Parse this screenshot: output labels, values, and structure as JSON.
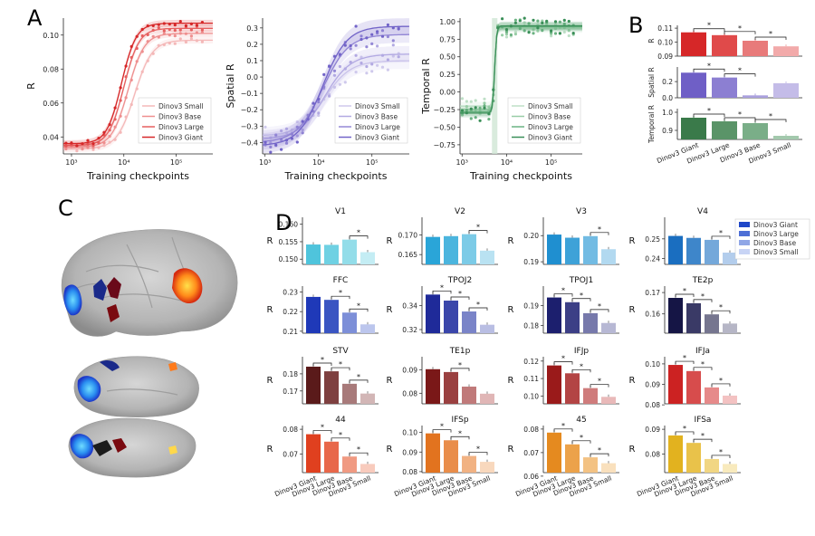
{
  "panel_labels": [
    "A",
    "B",
    "C",
    "D"
  ],
  "model_names": [
    "Dinov3 Small",
    "Dinov3 Base",
    "Dinov3 Large",
    "Dinov3 Giant"
  ],
  "model_names_bar": [
    "Dinov3 Giant",
    "Dinov3 Large",
    "Dinov3 Base",
    "Dinov3 Small"
  ],
  "colors": {
    "red": [
      "#f4b8b8",
      "#ee8f8f",
      "#e65f5f",
      "#d62728"
    ],
    "purple": [
      "#cfc9ec",
      "#b2a9e2",
      "#9488d6",
      "#7264c8"
    ],
    "green": [
      "#bfe0c7",
      "#98cda6",
      "#6bb282",
      "#3a8f58"
    ],
    "legend_blue": [
      "#1f47c8",
      "#4d6fd6",
      "#8fa6e6",
      "#c8d4f5"
    ]
  },
  "chart_data": [
    {
      "id": "A1",
      "type": "line",
      "title": "",
      "xlabel": "Training checkpoints",
      "ylabel": "R",
      "xscale": "log",
      "xlim": [
        700,
        500000
      ],
      "ylim": [
        0.03,
        0.11
      ],
      "xticks": [
        {
          "v": 1000,
          "label": "10³"
        },
        {
          "v": 10000,
          "label": "10⁴"
        },
        {
          "v": 100000,
          "label": "10⁵"
        }
      ],
      "yticks": [
        0.04,
        0.06,
        0.08,
        0.1
      ],
      "ytick_labels": [
        "0.04",
        "0.06",
        "0.08",
        "0.10"
      ],
      "legend": "bottom-right",
      "palette": "red",
      "series": [
        {
          "name": "Dinov3 Small",
          "low": 0.033,
          "high": 0.097,
          "mid": 16000,
          "slope": 2.6
        },
        {
          "name": "Dinov3 Base",
          "low": 0.034,
          "high": 0.101,
          "mid": 12000,
          "slope": 2.8
        },
        {
          "name": "Dinov3 Large",
          "low": 0.035,
          "high": 0.104,
          "mid": 10000,
          "slope": 3.0
        },
        {
          "name": "Dinov3 Giant",
          "low": 0.036,
          "high": 0.107,
          "mid": 9000,
          "slope": 3.1
        }
      ]
    },
    {
      "id": "A2",
      "type": "line",
      "title": "",
      "xlabel": "Training checkpoints",
      "ylabel": "Spatial R",
      "xscale": "log",
      "xlim": [
        900,
        500000
      ],
      "ylim": [
        -0.47,
        0.36
      ],
      "xticks": [
        {
          "v": 1000,
          "label": "10³"
        },
        {
          "v": 10000,
          "label": "10⁴"
        },
        {
          "v": 100000,
          "label": "10⁵"
        }
      ],
      "yticks": [
        -0.4,
        -0.3,
        -0.2,
        -0.1,
        0.0,
        0.1,
        0.2,
        0.3
      ],
      "ytick_labels": [
        "−0.4",
        "−0.3",
        "−0.2",
        "−0.1",
        "0.0",
        "0.1",
        "0.2",
        "0.3"
      ],
      "legend": "bottom-right",
      "palette": "purple",
      "series": [
        {
          "name": "Dinov3 Small",
          "low": -0.36,
          "high": 0.1,
          "mid": 13000,
          "slope": 1.8
        },
        {
          "name": "Dinov3 Base",
          "low": -0.38,
          "high": 0.14,
          "mid": 13000,
          "slope": 1.8
        },
        {
          "name": "Dinov3 Large",
          "low": -0.4,
          "high": 0.26,
          "mid": 12000,
          "slope": 1.8
        },
        {
          "name": "Dinov3 Giant",
          "low": -0.42,
          "high": 0.31,
          "mid": 12000,
          "slope": 1.9
        }
      ]
    },
    {
      "id": "A3",
      "type": "line",
      "title": "",
      "xlabel": "Training checkpoints",
      "ylabel": "Temporal R",
      "xscale": "log",
      "xlim": [
        900,
        500000
      ],
      "ylim": [
        -0.88,
        1.05
      ],
      "xticks": [
        {
          "v": 1000,
          "label": "10³"
        },
        {
          "v": 10000,
          "label": "10⁴"
        },
        {
          "v": 100000,
          "label": "10⁵"
        }
      ],
      "yticks": [
        -0.75,
        -0.5,
        -0.25,
        0.0,
        0.25,
        0.5,
        0.75,
        1.0
      ],
      "ytick_labels": [
        "−0.75",
        "−0.50",
        "−0.25",
        "0.00",
        "0.25",
        "0.50",
        "0.75",
        "1.00"
      ],
      "legend": "bottom-right",
      "palette": "green",
      "series": [
        {
          "name": "Dinov3 Small",
          "low": -0.2,
          "high": 0.9,
          "mid": 5400,
          "slope": 20
        },
        {
          "name": "Dinov3 Base",
          "low": -0.25,
          "high": 0.92,
          "mid": 5400,
          "slope": 20
        },
        {
          "name": "Dinov3 Large",
          "low": -0.28,
          "high": 0.93,
          "mid": 5400,
          "slope": 20
        },
        {
          "name": "Dinov3 Giant",
          "low": -0.3,
          "high": 0.94,
          "mid": 5400,
          "slope": 20
        }
      ]
    },
    {
      "id": "B",
      "type": "bar",
      "categories": [
        "Dinov3 Giant",
        "Dinov3 Large",
        "Dinov3 Base",
        "Dinov3 Small"
      ],
      "subplots": [
        {
          "ylabel": "R",
          "values": [
            0.107,
            0.105,
            0.101,
            0.097
          ],
          "ylim": [
            0.09,
            0.112
          ],
          "yticks": [
            0.09,
            0.1,
            0.11
          ],
          "ytick_labels": [
            "0.09",
            "0.10",
            "0.11"
          ],
          "colors": [
            "#d62728",
            "#e04a4a",
            "#e87a7a",
            "#f2aaaa"
          ],
          "sig": [
            [
              0,
              1
            ],
            [
              1,
              2
            ],
            [
              2,
              3
            ]
          ]
        },
        {
          "ylabel": "Spatial R",
          "values": [
            0.31,
            0.25,
            0.03,
            0.18
          ],
          "ylim": [
            0.0,
            0.38
          ],
          "yticks": [
            0.0,
            0.2
          ],
          "ytick_labels": [
            "0.0",
            "0.2"
          ],
          "colors": [
            "#6f5fc6",
            "#8c7fd2",
            "#aaa0de",
            "#c4bce8"
          ],
          "sig": [
            [
              0,
              1
            ],
            [
              1,
              2
            ]
          ]
        },
        {
          "ylabel": "Temporal R",
          "values": [
            0.97,
            0.95,
            0.94,
            0.87
          ],
          "ylim": [
            0.85,
            1.02
          ],
          "yticks": [
            0.9,
            1.0
          ],
          "ytick_labels": [
            "0.9",
            "1.0"
          ],
          "colors": [
            "#3a7a4a",
            "#5a9468",
            "#7aae88",
            "#a3c9ad"
          ],
          "sig": [
            [
              0,
              1
            ],
            [
              1,
              2
            ],
            [
              2,
              3
            ]
          ]
        }
      ]
    },
    {
      "id": "D",
      "type": "bar",
      "categories": [
        "Dinov3 Giant",
        "Dinov3 Large",
        "Dinov3 Base",
        "Dinov3 Small"
      ],
      "legend": "right",
      "subplots": [
        {
          "title": "V1",
          "values": [
            0.1542,
            0.1541,
            0.1556,
            0.152
          ],
          "ylim": [
            0.1485,
            0.162
          ],
          "yticks": [
            0.15,
            0.155,
            0.16
          ],
          "ytick_labels": [
            "0.150",
            "0.155",
            "0.160"
          ],
          "colors": [
            "#4fc4dc",
            "#6fd1e3",
            "#93dde9",
            "#c4edf4"
          ],
          "sig": [
            [
              2,
              3
            ]
          ]
        },
        {
          "title": "V2",
          "values": [
            0.1695,
            0.1697,
            0.1702,
            0.166
          ],
          "ylim": [
            0.1625,
            0.1745
          ],
          "yticks": [
            0.165,
            0.17
          ],
          "ytick_labels": [
            "0.165",
            "0.170"
          ],
          "colors": [
            "#2aa5d8",
            "#4bb5de",
            "#7ccbe7",
            "#b9e2f2"
          ],
          "sig": [
            [
              2,
              3
            ]
          ]
        },
        {
          "title": "V3",
          "values": [
            0.2004,
            0.1992,
            0.1998,
            0.1948
          ],
          "ylim": [
            0.189,
            0.207
          ],
          "yticks": [
            0.19,
            0.2
          ],
          "ytick_labels": [
            "0.19",
            "0.20"
          ],
          "colors": [
            "#1f8fd0",
            "#3ea2d8",
            "#72bbe3",
            "#b2d9f0"
          ],
          "sig": [
            [
              2,
              3
            ]
          ]
        },
        {
          "title": "V4",
          "values": [
            0.2515,
            0.2505,
            0.2495,
            0.243
          ],
          "ylim": [
            0.237,
            0.261
          ],
          "yticks": [
            0.24,
            0.25
          ],
          "ytick_labels": [
            "0.24",
            "0.25"
          ],
          "colors": [
            "#1a6ec0",
            "#3e86ca",
            "#74a8da",
            "#b3cdec"
          ],
          "sig": [
            [
              2,
              3
            ]
          ]
        },
        {
          "title": "FFC",
          "values": [
            0.2275,
            0.226,
            0.2195,
            0.2135
          ],
          "ylim": [
            0.209,
            0.233
          ],
          "yticks": [
            0.21,
            0.22,
            0.23
          ],
          "ytick_labels": [
            "0.21",
            "0.22",
            "0.23"
          ],
          "colors": [
            "#1f39b8",
            "#3a55c2",
            "#7d8fd8",
            "#bcc6ed"
          ],
          "sig": [
            [
              1,
              2
            ],
            [
              2,
              3
            ]
          ]
        },
        {
          "title": "TPOJ2",
          "values": [
            0.349,
            0.344,
            0.335,
            0.324
          ],
          "ylim": [
            0.317,
            0.356
          ],
          "yticks": [
            0.32,
            0.34
          ],
          "ytick_labels": [
            "0.32",
            "0.34"
          ],
          "colors": [
            "#1f2a99",
            "#3a46aa",
            "#7a84c8",
            "#b9bee3"
          ],
          "sig": [
            [
              0,
              1
            ],
            [
              1,
              2
            ],
            [
              2,
              3
            ]
          ]
        },
        {
          "title": "TPOJ1",
          "values": [
            0.1942,
            0.1918,
            0.1862,
            0.1812
          ],
          "ylim": [
            0.176,
            0.2
          ],
          "yticks": [
            0.18,
            0.19
          ],
          "ytick_labels": [
            "0.18",
            "0.19"
          ],
          "colors": [
            "#1c1f6e",
            "#3c3f86",
            "#7779ab",
            "#b7b8d4"
          ],
          "sig": [
            [
              0,
              1
            ],
            [
              1,
              2
            ],
            [
              2,
              3
            ]
          ]
        },
        {
          "title": "TE2p",
          "values": [
            0.1675,
            0.165,
            0.1598,
            0.1555
          ],
          "ylim": [
            0.151,
            0.173
          ],
          "yticks": [
            0.16,
            0.17
          ],
          "ytick_labels": [
            "0.16",
            "0.17"
          ],
          "colors": [
            "#151545",
            "#3a3a66",
            "#76768f",
            "#b6b6c6"
          ],
          "sig": [
            [
              0,
              1
            ],
            [
              1,
              2
            ],
            [
              2,
              3
            ]
          ]
        },
        {
          "title": "STV",
          "values": [
            0.1842,
            0.1815,
            0.1742,
            0.1685
          ],
          "ylim": [
            0.1625,
            0.19
          ],
          "yticks": [
            0.17,
            0.18
          ],
          "ytick_labels": [
            "0.17",
            "0.18"
          ],
          "colors": [
            "#5a1a1a",
            "#7e4040",
            "#a87a7a",
            "#d2b6b6"
          ],
          "sig": [
            [
              0,
              1
            ],
            [
              1,
              2
            ],
            [
              2,
              3
            ]
          ]
        },
        {
          "title": "TE1p",
          "values": [
            0.0902,
            0.089,
            0.0828,
            0.0798
          ],
          "ylim": [
            0.0755,
            0.0955
          ],
          "yticks": [
            0.08,
            0.09
          ],
          "ytick_labels": [
            "0.08",
            "0.09"
          ],
          "colors": [
            "#7a1818",
            "#9a4040",
            "#c07a7a",
            "#e0b6b6"
          ],
          "sig": [
            [
              1,
              2
            ]
          ]
        },
        {
          "title": "IFJp",
          "values": [
            0.1175,
            0.113,
            0.1045,
            0.0995
          ],
          "ylim": [
            0.0955,
            0.1225
          ],
          "yticks": [
            0.1,
            0.11,
            0.12
          ],
          "ytick_labels": [
            "0.10",
            "0.11",
            "0.12"
          ],
          "colors": [
            "#9a1a1a",
            "#b34444",
            "#cf7c7c",
            "#e9b9b9"
          ],
          "sig": [
            [
              0,
              1
            ],
            [
              1,
              2
            ],
            [
              2,
              3
            ]
          ]
        },
        {
          "title": "IFJa",
          "values": [
            0.0995,
            0.0965,
            0.0885,
            0.0845
          ],
          "ylim": [
            0.0805,
            0.1035
          ],
          "yticks": [
            0.08,
            0.09,
            0.1
          ],
          "ytick_labels": [
            "0.08",
            "0.09",
            "0.10"
          ],
          "colors": [
            "#cc2222",
            "#d74c4c",
            "#e68a8a",
            "#f3c2c2"
          ],
          "sig": [
            [
              0,
              1
            ],
            [
              1,
              2
            ],
            [
              2,
              3
            ]
          ]
        },
        {
          "title": "44",
          "values": [
            0.078,
            0.075,
            0.069,
            0.066
          ],
          "ylim": [
            0.0625,
            0.0815
          ],
          "yticks": [
            0.07,
            0.08
          ],
          "ytick_labels": [
            "0.07",
            "0.08"
          ],
          "colors": [
            "#e0401f",
            "#e8674a",
            "#f09a82",
            "#f8cbbd"
          ],
          "sig": [
            [
              0,
              1
            ],
            [
              1,
              2
            ],
            [
              2,
              3
            ]
          ]
        },
        {
          "title": "IFSp",
          "values": [
            0.0995,
            0.096,
            0.088,
            0.085
          ],
          "ylim": [
            0.0795,
            0.1035
          ],
          "yticks": [
            0.08,
            0.09,
            0.1
          ],
          "ytick_labels": [
            "0.08",
            "0.09",
            "0.10"
          ],
          "colors": [
            "#e2731f",
            "#e98d4a",
            "#f1b283",
            "#f8d8bd"
          ],
          "sig": [
            [
              0,
              1
            ],
            [
              1,
              2
            ],
            [
              2,
              3
            ]
          ]
        },
        {
          "title": "45",
          "values": [
            0.0785,
            0.0735,
            0.068,
            0.0655
          ],
          "ylim": [
            0.0615,
            0.0815
          ],
          "yticks": [
            0.06,
            0.07,
            0.08
          ],
          "ytick_labels": [
            "0.06",
            "0.07",
            "0.08"
          ],
          "colors": [
            "#e58a1f",
            "#eca24a",
            "#f3c283",
            "#f9e0bd"
          ],
          "sig": [
            [
              0,
              1
            ],
            [
              1,
              2
            ],
            [
              2,
              3
            ]
          ]
        },
        {
          "title": "IFSa",
          "values": [
            0.0875,
            0.0845,
            0.078,
            0.076
          ],
          "ylim": [
            0.0725,
            0.0915
          ],
          "yticks": [
            0.08,
            0.09
          ],
          "ytick_labels": [
            "0.08",
            "0.09"
          ],
          "colors": [
            "#e2b21f",
            "#e9c24a",
            "#f1d683",
            "#f8eabd"
          ],
          "sig": [
            [
              0,
              1
            ],
            [
              1,
              2
            ],
            [
              2,
              3
            ]
          ]
        }
      ]
    }
  ],
  "axis_text": {
    "r": "R",
    "star": "*"
  }
}
